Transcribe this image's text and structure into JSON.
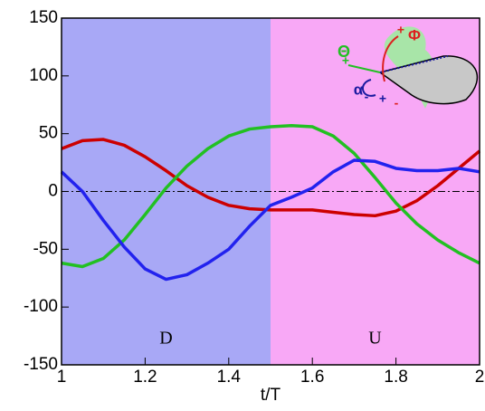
{
  "chart_data": {
    "type": "line",
    "xlabel": "t/T",
    "xlim": [
      1,
      2
    ],
    "ylim": [
      -150,
      150
    ],
    "xticks": [
      1,
      1.2,
      1.4,
      1.6,
      1.8,
      2
    ],
    "yticks": [
      -150,
      -100,
      -50,
      0,
      50,
      100,
      150
    ],
    "reference_line": 0,
    "regions": [
      {
        "label": "D",
        "range": [
          1,
          1.5
        ],
        "color": "#a8a8f6"
      },
      {
        "label": "U",
        "range": [
          1.5,
          2
        ],
        "color": "#f8a8f6"
      }
    ],
    "annotations": [
      "Θ",
      "Φ",
      "α",
      "+",
      "+",
      "-",
      "-",
      "+"
    ],
    "x": [
      1,
      1.05,
      1.1,
      1.15,
      1.2,
      1.25,
      1.3,
      1.35,
      1.4,
      1.45,
      1.5,
      1.55,
      1.6,
      1.65,
      1.7,
      1.75,
      1.8,
      1.85,
      1.9,
      1.95,
      2
    ],
    "series": [
      {
        "color": "#cc0000",
        "values": [
          37,
          44,
          45,
          40,
          30,
          18,
          5,
          -5,
          -12,
          -15,
          -16,
          -16,
          -16,
          -18,
          -20,
          -21,
          -17,
          -8,
          5,
          20,
          35
        ]
      },
      {
        "color": "#22c022",
        "values": [
          -62,
          -65,
          -58,
          -42,
          -20,
          3,
          22,
          37,
          48,
          54,
          56,
          57,
          56,
          48,
          33,
          12,
          -10,
          -28,
          -42,
          -53,
          -62
        ]
      },
      {
        "color": "#2222ee",
        "values": [
          17,
          0,
          -25,
          -48,
          -67,
          -76,
          -72,
          -62,
          -50,
          -30,
          -12,
          -5,
          3,
          17,
          27,
          26,
          20,
          18,
          18,
          20,
          17
        ]
      }
    ]
  }
}
